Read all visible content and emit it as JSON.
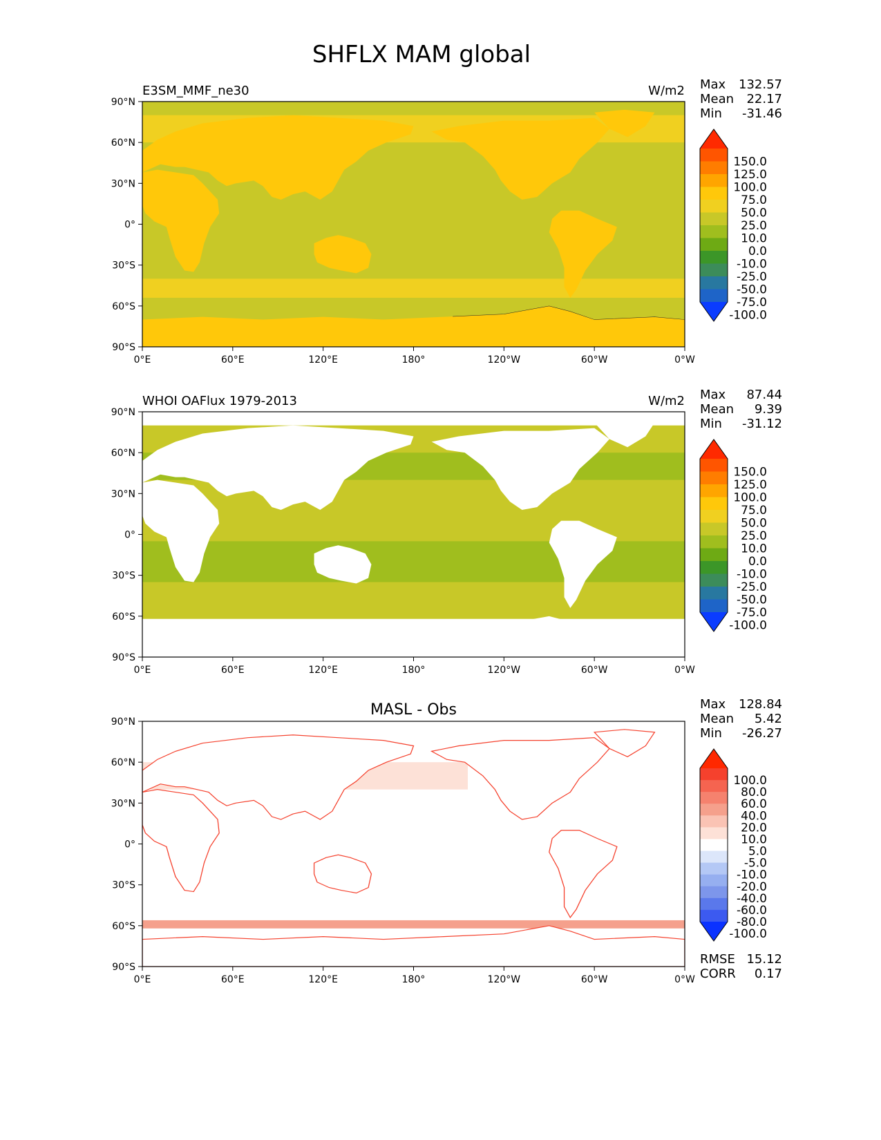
{
  "figure": {
    "title": "SHFLX MAM global"
  },
  "chart_data": [
    {
      "type": "heatmap",
      "title_left": "E3SM_MMF_ne30",
      "title_center": "",
      "units": "W/m2",
      "stats": [
        {
          "label": "Max",
          "value": "132.57"
        },
        {
          "label": "Mean",
          "value": "22.17"
        },
        {
          "label": "Min",
          "value": "-31.46"
        }
      ],
      "colorbar": {
        "levels": [
          "150.0",
          "125.0",
          "100.0",
          "75.0",
          "50.0",
          "25.0",
          "10.0",
          "0.0",
          "-10.0",
          "-25.0",
          "-50.0",
          "-75.0",
          "-100.0"
        ],
        "colors": [
          "#ff2a00",
          "#ff5500",
          "#ff7d00",
          "#ffa500",
          "#ffc80a",
          "#f0d020",
          "#c8c828",
          "#a0be1e",
          "#6eaa14",
          "#3c9628",
          "#3c8c5a",
          "#2878a0",
          "#1e64c8",
          "#0a3cff"
        ],
        "extend": "both"
      },
      "xlabel": "",
      "ylabel": "",
      "x_ticks": [
        "0°E",
        "60°E",
        "120°E",
        "180°",
        "120°W",
        "60°W",
        "0°W"
      ],
      "y_ticks": [
        "90°N",
        "60°N",
        "30°N",
        "0°",
        "30°S",
        "60°S",
        "90°S"
      ],
      "xlim": [
        0,
        360
      ],
      "ylim": [
        -90,
        90
      ],
      "grid": false
    },
    {
      "type": "heatmap",
      "title_left": "WHOI OAFlux 1979-2013",
      "title_center": "",
      "units": "W/m2",
      "stats": [
        {
          "label": "Max",
          "value": "87.44"
        },
        {
          "label": "Mean",
          "value": "9.39"
        },
        {
          "label": "Min",
          "value": "-31.12"
        }
      ],
      "colorbar": {
        "levels": [
          "150.0",
          "125.0",
          "100.0",
          "75.0",
          "50.0",
          "25.0",
          "10.0",
          "0.0",
          "-10.0",
          "-25.0",
          "-50.0",
          "-75.0",
          "-100.0"
        ],
        "colors": [
          "#ff2a00",
          "#ff5500",
          "#ff7d00",
          "#ffa500",
          "#ffc80a",
          "#f0d020",
          "#c8c828",
          "#a0be1e",
          "#6eaa14",
          "#3c9628",
          "#3c8c5a",
          "#2878a0",
          "#1e64c8",
          "#0a3cff"
        ],
        "extend": "both"
      },
      "xlabel": "",
      "ylabel": "",
      "x_ticks": [
        "0°E",
        "60°E",
        "120°E",
        "180°",
        "120°W",
        "60°W",
        "0°W"
      ],
      "y_ticks": [
        "90°N",
        "60°N",
        "30°N",
        "0°",
        "30°S",
        "60°S",
        "90°S"
      ],
      "xlim": [
        0,
        360
      ],
      "ylim": [
        -90,
        90
      ],
      "grid": false
    },
    {
      "type": "heatmap",
      "title_left": "",
      "title_center": "MASL - Obs",
      "units": "",
      "stats": [
        {
          "label": "Max",
          "value": "128.84"
        },
        {
          "label": "Mean",
          "value": "5.42"
        },
        {
          "label": "Min",
          "value": "-26.27"
        }
      ],
      "extra_stats": [
        {
          "label": "RMSE",
          "value": "15.12"
        },
        {
          "label": "CORR",
          "value": "0.17"
        }
      ],
      "colorbar": {
        "levels": [
          "100.0",
          "80.0",
          "60.0",
          "40.0",
          "20.0",
          "10.0",
          "5.0",
          "-5.0",
          "-10.0",
          "-20.0",
          "-40.0",
          "-60.0",
          "-80.0",
          "-100.0"
        ],
        "colors": [
          "#ff2800",
          "#f5412d",
          "#f56450",
          "#f5826e",
          "#f5a08c",
          "#fac3b4",
          "#fde1d7",
          "#ffffff",
          "#dce6fa",
          "#b4c8f5",
          "#96aff0",
          "#7d96eb",
          "#5a78eb",
          "#3c5af0",
          "#0a32ff"
        ],
        "extend": "both"
      },
      "xlabel": "",
      "ylabel": "",
      "x_ticks": [
        "0°E",
        "60°E",
        "120°E",
        "180°",
        "120°W",
        "60°W",
        "0°W"
      ],
      "y_ticks": [
        "90°N",
        "60°N",
        "30°N",
        "0°",
        "30°S",
        "60°S",
        "90°S"
      ],
      "xlim": [
        0,
        360
      ],
      "ylim": [
        -90,
        90
      ],
      "grid": false
    }
  ]
}
